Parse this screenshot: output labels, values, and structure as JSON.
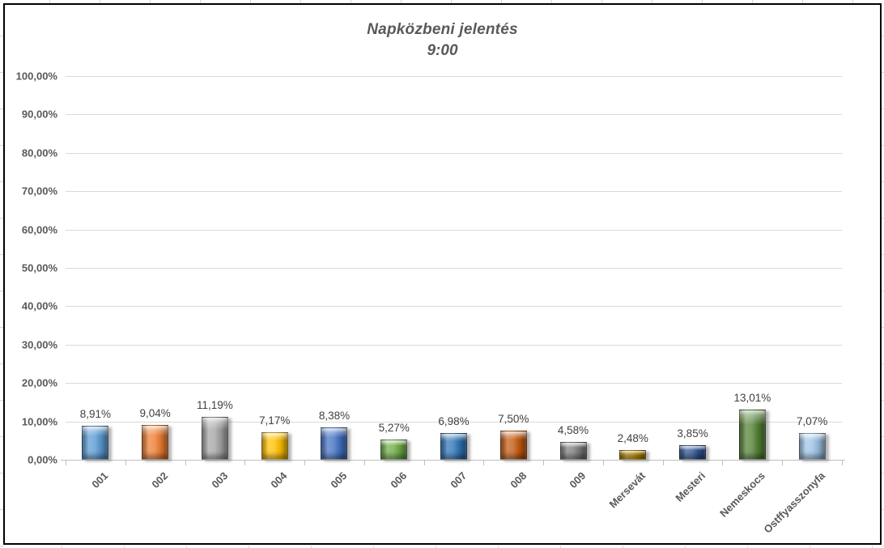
{
  "chart_data": {
    "type": "bar",
    "title": "Napközbeni jelentés",
    "subtitle": "9:00",
    "categories": [
      "001",
      "002",
      "003",
      "004",
      "005",
      "006",
      "007",
      "008",
      "009",
      "Mersevát",
      "Mesteri",
      "Nemeskocs",
      "Ostffyasszonyfa"
    ],
    "values": [
      8.91,
      9.04,
      11.19,
      7.17,
      8.38,
      5.27,
      6.98,
      7.5,
      4.58,
      2.48,
      3.85,
      13.01,
      7.07
    ],
    "value_labels": [
      "8,91%",
      "9,04%",
      "11,19%",
      "7,17%",
      "8,38%",
      "5,27%",
      "6,98%",
      "7,50%",
      "4,58%",
      "2,48%",
      "3,85%",
      "13,01%",
      "7,07%"
    ],
    "bar_colors": [
      "#5B9BD5",
      "#ED7D31",
      "#A5A5A5",
      "#FFC000",
      "#4472C4",
      "#70AD47",
      "#2E75B6",
      "#C55A11",
      "#7F7F7F",
      "#BF8F00",
      "#2F5597",
      "#538135",
      "#9DC3E6"
    ],
    "ylim": [
      0,
      100
    ],
    "ytick_labels": [
      "100,00%",
      "90,00%",
      "80,00%",
      "70,00%",
      "60,00%",
      "50,00%",
      "40,00%",
      "30,00%",
      "20,00%",
      "10,00%",
      "0,00%"
    ],
    "ytick_values": [
      100,
      90,
      80,
      70,
      60,
      50,
      40,
      30,
      20,
      10,
      0
    ],
    "xlabel": "",
    "ylabel": "",
    "grid": "horizontal",
    "legend": "none",
    "colors": {
      "grid": "#d9d9d9",
      "axis": "#bfbfbf",
      "title_text": "#595959",
      "axis_text": "#595959",
      "data_label_text": "#404040",
      "frame_border": "#000000"
    }
  }
}
